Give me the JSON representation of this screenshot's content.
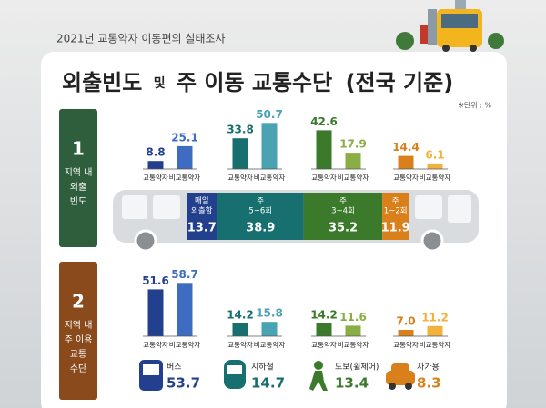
{
  "survey_label": "2021년 교통약자 이동편의 실태조사",
  "title": {
    "main": "외출빈도",
    "conj": "및",
    "rest": "주 이동 교통수단",
    "scope": "(전국 기준)"
  },
  "unit": "※단위 : %",
  "series_names": [
    "교통약자",
    "비교통약자"
  ],
  "sections": [
    {
      "number": "1",
      "label": [
        "지역 내",
        "외출",
        "빈도"
      ],
      "color": "#2f5e3c",
      "groups": [
        {
          "name_lines": [
            "매일",
            "외출함"
          ],
          "values": [
            8.8,
            25.1
          ],
          "total": 13.7,
          "colors": [
            "#23408e",
            "#3d6cc0"
          ]
        },
        {
          "name_lines": [
            "주",
            "5~6회"
          ],
          "values": [
            33.8,
            50.7
          ],
          "total": 38.9,
          "colors": [
            "#17706f",
            "#4aa3b3"
          ]
        },
        {
          "name_lines": [
            "주",
            "3~4회"
          ],
          "values": [
            42.6,
            17.9
          ],
          "total": 35.2,
          "colors": [
            "#3a7a2a",
            "#8aae45"
          ]
        },
        {
          "name_lines": [
            "주",
            "1~2회"
          ],
          "values": [
            14.4,
            6.1
          ],
          "total": 11.9,
          "colors": [
            "#d9801a",
            "#f0b23c"
          ]
        }
      ]
    },
    {
      "number": "2",
      "label": [
        "지역 내",
        "주 이용",
        "교통",
        "수단"
      ],
      "color": "#8a4a1c",
      "groups": [
        {
          "name_lines": [
            "버스"
          ],
          "values": [
            51.6,
            58.7
          ],
          "total": 53.7,
          "colors": [
            "#23408e",
            "#3d6cc0"
          ]
        },
        {
          "name_lines": [
            "지하철"
          ],
          "values": [
            14.2,
            15.8
          ],
          "total": 14.7,
          "colors": [
            "#17706f",
            "#4aa3b3"
          ]
        },
        {
          "name_lines": [
            "도보(휠체어)"
          ],
          "values": [
            14.2,
            11.6
          ],
          "total": 13.4,
          "colors": [
            "#3a7a2a",
            "#8aae45"
          ]
        },
        {
          "name_lines": [
            "자가용"
          ],
          "values": [
            7.0,
            11.2
          ],
          "value_labels": [
            "7.0",
            "11.2"
          ],
          "total": 8.3,
          "colors": [
            "#d9801a",
            "#f0b23c"
          ]
        }
      ]
    }
  ]
}
